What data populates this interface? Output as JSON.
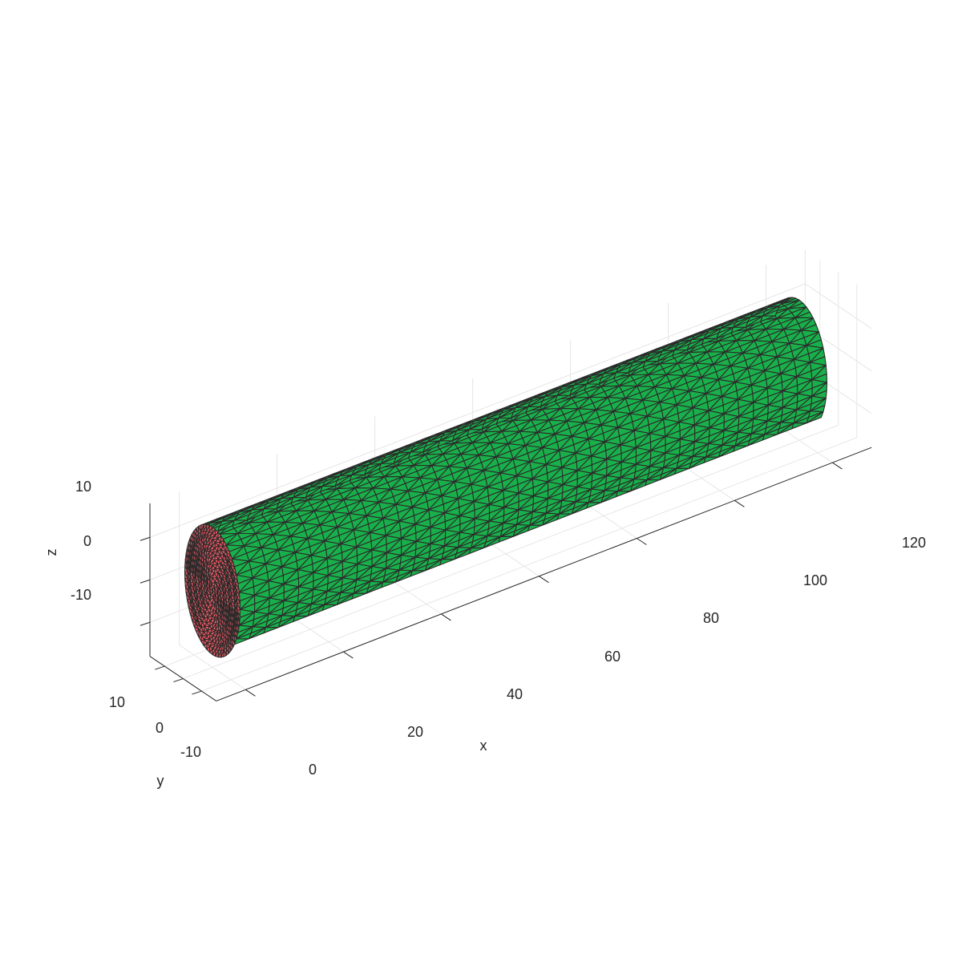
{
  "chart_data": {
    "type": "mesh3d",
    "shape": "cylinder",
    "axis": "x",
    "radius": 15,
    "length": 120,
    "colors": {
      "side": "#19b04b",
      "end_cap": "#f05a64",
      "edges": "#2b2b2b",
      "axes": "#262626",
      "grid": "#e6e6e6"
    },
    "axes": {
      "x": {
        "label": "x",
        "ticks": [
          "0",
          "20",
          "40",
          "60",
          "80",
          "100",
          "120"
        ]
      },
      "y": {
        "label": "y",
        "ticks": [
          "10",
          "0",
          "-10"
        ]
      },
      "z": {
        "label": "z",
        "ticks": [
          "10",
          "0",
          "-10"
        ]
      }
    },
    "grid": true
  }
}
